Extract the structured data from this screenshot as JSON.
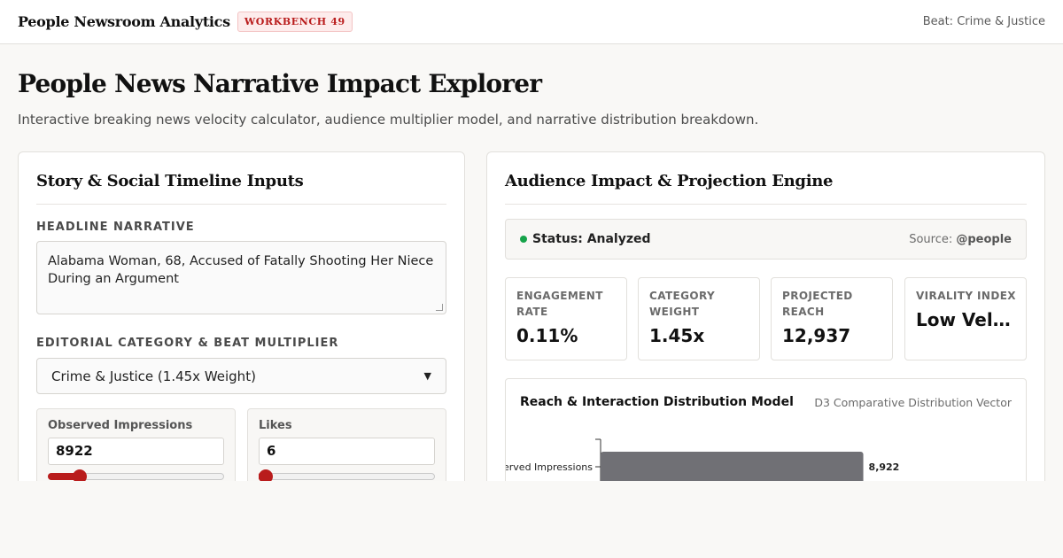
{
  "header": {
    "brand": "People Newsroom Analytics",
    "badge": "WORKBENCH 49",
    "beat": "Beat: Crime & Justice"
  },
  "page": {
    "title": "People News Narrative Impact Explorer",
    "subtitle": "Interactive breaking news velocity calculator, audience multiplier model, and narrative distribution breakdown."
  },
  "inputs_panel": {
    "title": "Story & Social Timeline Inputs",
    "headline_label": "HEADLINE NARRATIVE",
    "headline_value": "Alabama Woman, 68, Accused of Fatally Shooting Her Niece During an Argument",
    "category_label": "EDITORIAL CATEGORY & BEAT MULTIPLIER",
    "category_value": "Crime & Justice (1.45x Weight)",
    "fields": [
      {
        "label": "Observed Impressions",
        "value": "8922",
        "slider_fraction": 0.18
      },
      {
        "label": "Likes",
        "value": "6",
        "slider_fraction": 0.02
      }
    ]
  },
  "impact_panel": {
    "title": "Audience Impact & Projection Engine",
    "status_text": "Status: Analyzed",
    "source_label": "Source: ",
    "source_handle": "@people",
    "metrics": [
      {
        "label": "ENGAGEMENT RATE",
        "value": "0.11%"
      },
      {
        "label": "CATEGORY WEIGHT",
        "value": "1.45x"
      },
      {
        "label": "PROJECTED REACH",
        "value": "12,937"
      },
      {
        "label": "VIRALITY INDEX",
        "value": "Low Velocity"
      }
    ]
  },
  "chart_data": {
    "type": "bar",
    "title": "Reach & Interaction Distribution Model",
    "subtitle": "D3 Comparative Distribution Vector",
    "categories": [
      "Observed Impressions"
    ],
    "values": [
      8922
    ],
    "value_labels": [
      "8,922"
    ],
    "xlim": [
      0,
      12937
    ],
    "bar_color": "#707075"
  }
}
